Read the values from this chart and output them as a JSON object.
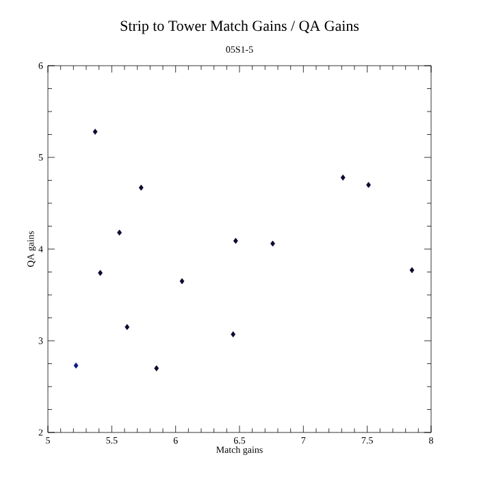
{
  "chart_data": {
    "type": "scatter",
    "title": "Strip to Tower Match Gains / QA Gains",
    "subtitle": "05S1-5",
    "xlabel": "Match gains",
    "ylabel": "QA gains",
    "x": [
      5.22,
      5.37,
      5.41,
      5.56,
      5.62,
      5.73,
      5.85,
      6.05,
      6.45,
      6.47,
      6.76,
      7.31,
      7.51,
      7.85
    ],
    "values": [
      2.73,
      5.28,
      3.74,
      4.18,
      3.15,
      4.67,
      2.7,
      3.65,
      3.07,
      4.09,
      4.06,
      4.78,
      4.7,
      3.77
    ],
    "colors": [
      "#0a1a8a",
      "#0a0a30",
      "#0a0a30",
      "#0a0a30",
      "#0a0a30",
      "#0a0a30",
      "#0a0a30",
      "#0a0a30",
      "#0a0a30",
      "#0a0a30",
      "#0a0a30",
      "#0a0a30",
      "#0a0a30",
      "#0a0a30"
    ],
    "marker": "diamond",
    "xlim": [
      5,
      8
    ],
    "ylim": [
      2,
      6
    ],
    "xticks": [
      5,
      5.5,
      6,
      6.5,
      7,
      7.5,
      8
    ],
    "yticks": [
      2,
      3,
      4,
      5,
      6
    ],
    "grid": false
  }
}
